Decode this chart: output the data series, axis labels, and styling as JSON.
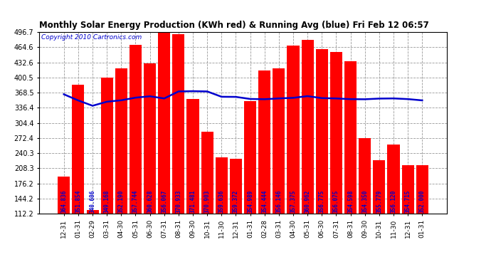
{
  "title": "Monthly Solar Energy Production (KWh red) & Running Avg (blue) Fri Feb 12 06:57",
  "copyright": "Copyright 2010 Cartronics.com",
  "categories": [
    "12-31",
    "01-31",
    "02-29",
    "03-31",
    "04-30",
    "05-31",
    "06-30",
    "07-31",
    "08-31",
    "09-30",
    "10-31",
    "11-30",
    "12-31",
    "01-31",
    "02-28",
    "03-31",
    "04-30",
    "05-31",
    "06-30",
    "07-31",
    "08-31",
    "09-30",
    "10-31",
    "11-30",
    "12-31",
    "01-31"
  ],
  "bar_values": [
    190,
    385,
    120,
    400,
    420,
    470,
    430,
    496,
    492,
    355,
    285,
    232,
    228,
    350,
    415,
    420,
    468,
    480,
    460,
    455,
    435,
    272,
    225,
    258,
    215,
    215
  ],
  "running_avg": [
    364.836,
    351.854,
    340.606,
    349.168,
    352.19,
    357.744,
    360.628,
    356.067,
    370.933,
    371.481,
    370.903,
    359.636,
    359.372,
    354.989,
    354.444,
    356.146,
    357.375,
    360.962,
    356.775,
    356.075,
    354.598,
    354.35,
    355.779,
    356.12,
    354.715,
    352.0
  ],
  "bar_color": "#ff0000",
  "line_color": "#0000cd",
  "background_color": "#ffffff",
  "grid_color": "#999999",
  "title_color": "#000000",
  "copyright_color": "#0000cd",
  "ytick_labels": [
    "112.2",
    "144.2",
    "176.2",
    "208.3",
    "240.3",
    "272.4",
    "304.4",
    "336.4",
    "368.5",
    "400.5",
    "432.6",
    "464.6",
    "496.7"
  ],
  "ytick_values": [
    112.2,
    144.2,
    176.2,
    208.3,
    240.3,
    272.4,
    304.4,
    336.4,
    368.5,
    400.5,
    432.6,
    464.6,
    496.7
  ],
  "ylim": [
    112.2,
    496.7
  ],
  "bar_label_color": "#0000cd",
  "bar_label_fontsize": 5.5,
  "title_fontsize": 8.5,
  "copyright_fontsize": 6.5
}
